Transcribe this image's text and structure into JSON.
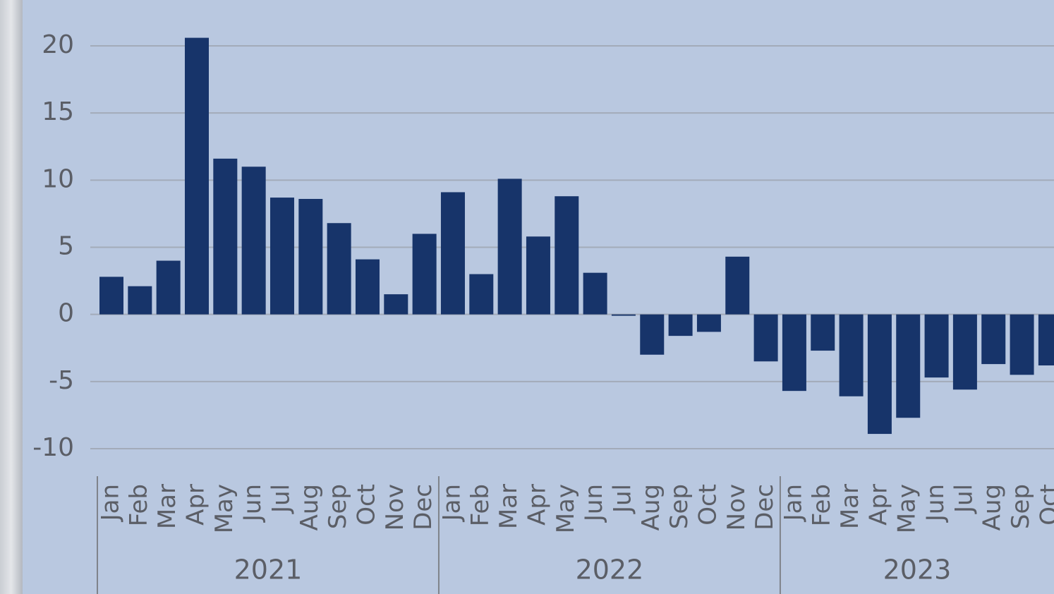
{
  "chart_data": {
    "type": "bar",
    "categories": [
      "Jan",
      "Feb",
      "Mar",
      "Apr",
      "May",
      "Jun",
      "Jul",
      "Aug",
      "Sep",
      "Oct",
      "Nov",
      "Dec",
      "Jan",
      "Feb",
      "Mar",
      "Apr",
      "May",
      "Jun",
      "Jul",
      "Aug",
      "Sep",
      "Oct",
      "Nov",
      "Dec",
      "Jan",
      "Feb",
      "Mar",
      "Apr",
      "May",
      "Jun",
      "Jul",
      "Aug",
      "Sep",
      "Oct"
    ],
    "groups": [
      "2021",
      "2022",
      "2023"
    ],
    "values": [
      2.8,
      2.1,
      4.0,
      20.6,
      11.6,
      11.0,
      8.7,
      8.6,
      6.8,
      4.1,
      1.5,
      6.0,
      9.1,
      3.0,
      10.1,
      5.8,
      8.8,
      3.1,
      -0.1,
      -3.0,
      -1.6,
      -1.3,
      4.3,
      -3.5,
      -5.7,
      -2.7,
      -6.1,
      -8.9,
      -7.7,
      -4.7,
      -5.6,
      -3.7,
      -4.5,
      -3.8
    ],
    "color": "#17346a",
    "ylim": [
      -10,
      20
    ],
    "yticks": [
      -10,
      -5,
      0,
      5,
      10,
      15,
      20
    ],
    "grid": true
  }
}
